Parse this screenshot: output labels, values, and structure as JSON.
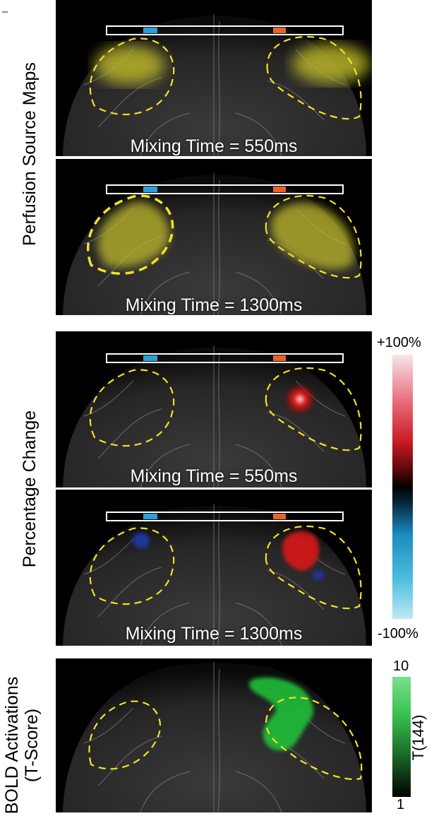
{
  "figure": {
    "group_labels": {
      "perfusion": "Perfusion Source Maps",
      "percentage": "Percentage Change",
      "bold_line1": "BOLD Activations",
      "bold_line2": "(T-Score)"
    },
    "panels": [
      {
        "id": "perfusion-550",
        "caption": "Mixing Time = 550ms"
      },
      {
        "id": "perfusion-1300",
        "caption": "Mixing Time = 1300ms"
      },
      {
        "id": "percentage-550",
        "caption": "Mixing Time = 550ms"
      },
      {
        "id": "percentage-1300",
        "caption": "Mixing Time = 1300ms"
      },
      {
        "id": "bold",
        "caption": ""
      }
    ],
    "percentage_colorbar": {
      "max_label": "+100%",
      "min_label": "-100%"
    },
    "tscore_colorbar": {
      "max_label": "10",
      "min_label": "1",
      "axis_label": "T(144)"
    },
    "colors": {
      "perfusion_overlay": "#c8c22a",
      "roi_outline": "#f5e028",
      "probe_left_marker": "#2a9fd8",
      "probe_right_marker": "#e8622a",
      "positive_change": "#e01818",
      "negative_change": "#2040c0",
      "bold_activation": "#22c83a"
    }
  }
}
